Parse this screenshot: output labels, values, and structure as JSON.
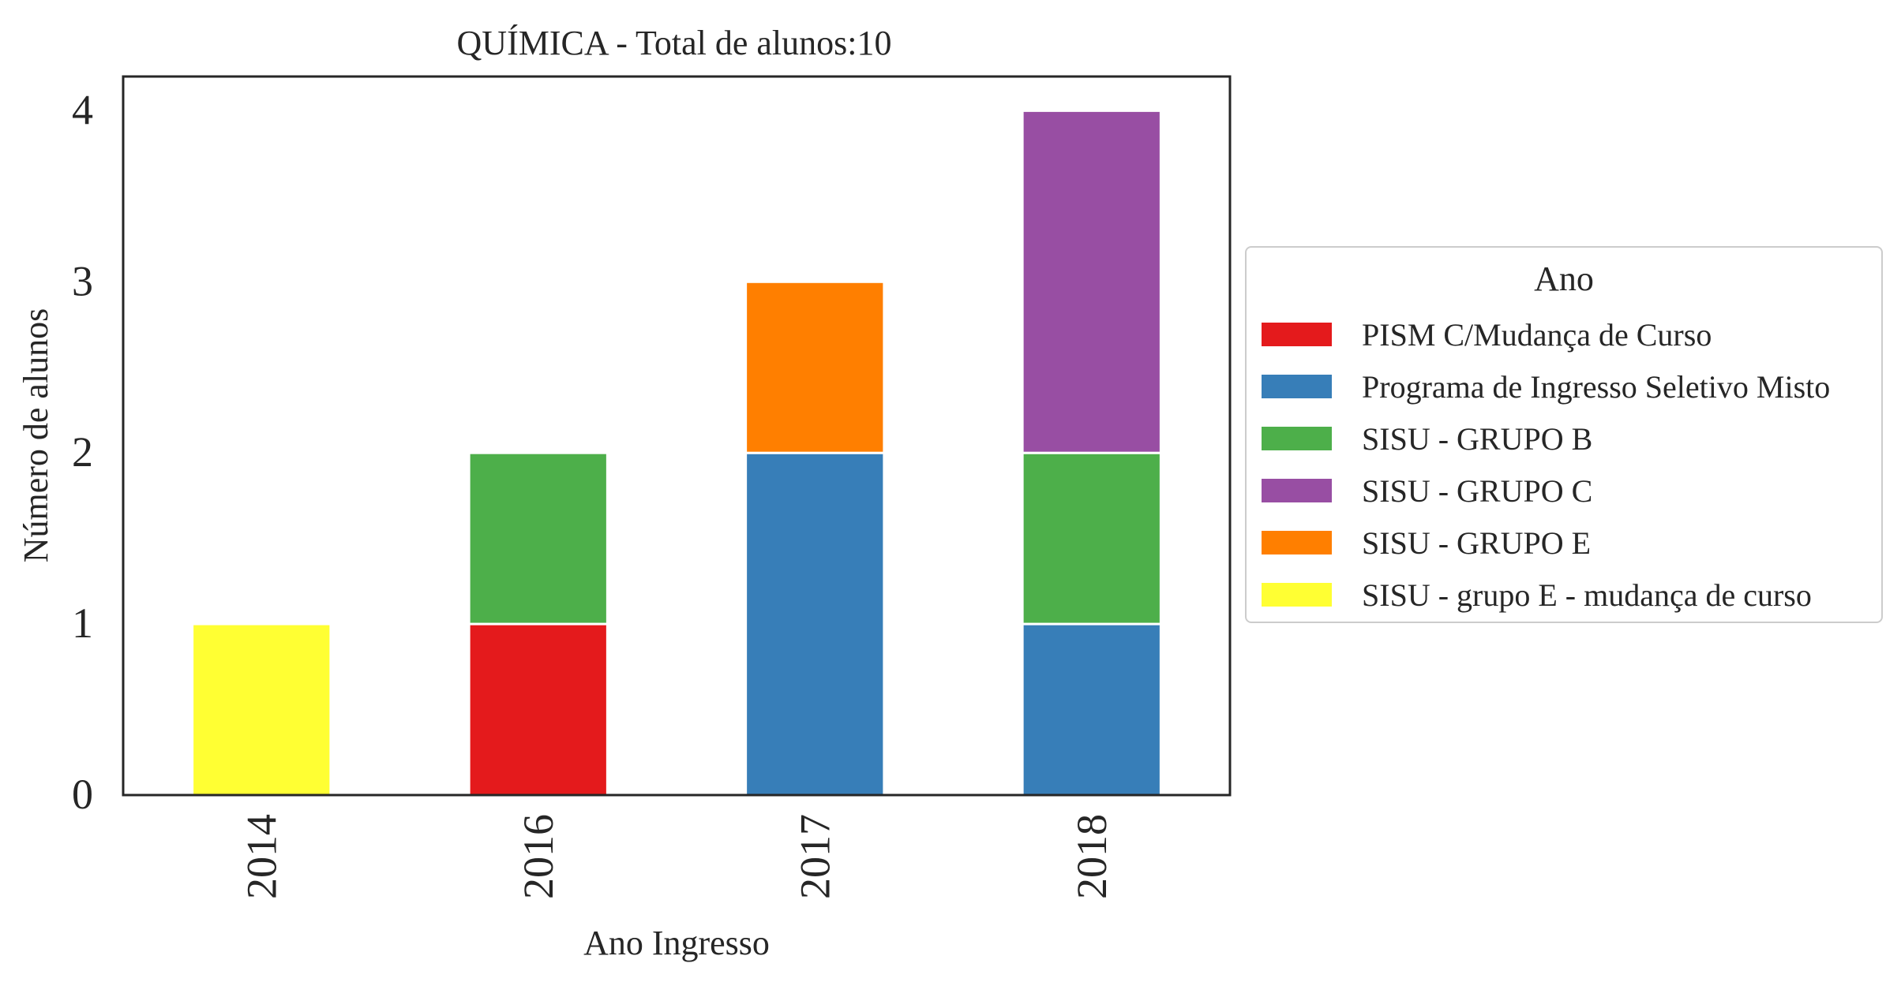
{
  "chart_data": {
    "type": "bar",
    "stacked": true,
    "title": "QUÍMICA - Total de alunos:10",
    "xlabel": "Ano Ingresso",
    "ylabel": "Número de alunos",
    "categories": [
      "2014",
      "2016",
      "2017",
      "2018"
    ],
    "ylim": [
      0,
      4.2
    ],
    "yticks": [
      0,
      1,
      2,
      3,
      4
    ],
    "legend_title": "Ano",
    "legend_position": "right",
    "grid": false,
    "series": [
      {
        "name": "PISM C/Mudança de Curso",
        "color": "#e41a1c",
        "values": [
          0,
          1,
          0,
          0
        ]
      },
      {
        "name": "Programa de Ingresso Seletivo Misto",
        "color": "#377eb8",
        "values": [
          0,
          0,
          2,
          1
        ]
      },
      {
        "name": "SISU - GRUPO B",
        "color": "#4daf4a",
        "values": [
          0,
          1,
          0,
          1
        ]
      },
      {
        "name": "SISU - GRUPO C",
        "color": "#984ea3",
        "values": [
          0,
          0,
          0,
          2
        ]
      },
      {
        "name": "SISU - GRUPO E",
        "color": "#ff7f00",
        "values": [
          0,
          0,
          1,
          0
        ]
      },
      {
        "name": "SISU - grupo E - mudança de curso",
        "color": "#ffff33",
        "values": [
          1,
          0,
          0,
          0
        ]
      }
    ]
  }
}
